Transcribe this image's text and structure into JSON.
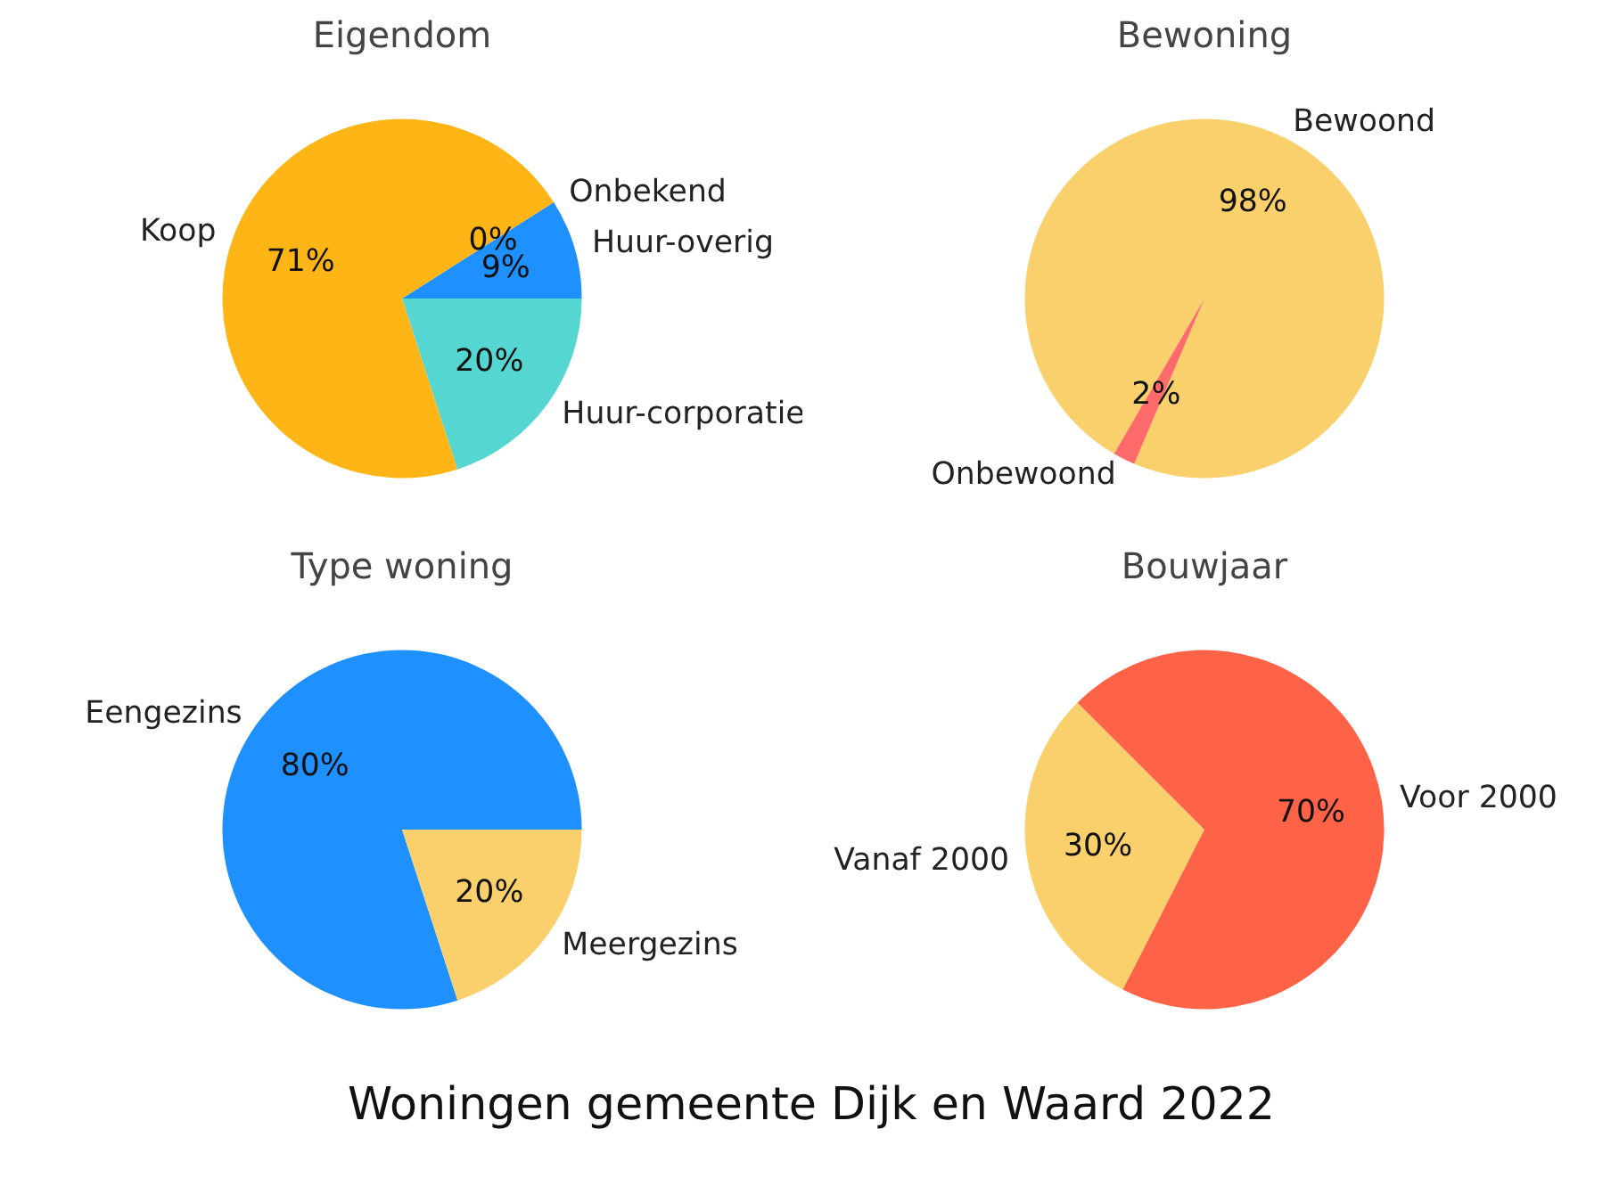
{
  "chart_data": [
    {
      "type": "pie",
      "title": "Eigendom",
      "categories": [
        "Huur-overig",
        "Onbekend",
        "Koop",
        "Huur-corporatie"
      ],
      "values": [
        9,
        0,
        71,
        20
      ],
      "value_labels": [
        "9%",
        "0%",
        "71%",
        "20%"
      ],
      "colors": [
        "#1e90ff",
        "#808080",
        "#ffb515",
        "#55d6d0"
      ]
    },
    {
      "type": "pie",
      "title": "Bewoning",
      "categories": [
        "Bewoond",
        "Onbewoond"
      ],
      "values": [
        98,
        2
      ],
      "value_labels": [
        "98%",
        "2%"
      ],
      "colors": [
        "#f9d06b",
        "#ff6b6b"
      ]
    },
    {
      "type": "pie",
      "title": "Type woning",
      "categories": [
        "Eengezins",
        "Meergezins"
      ],
      "values": [
        80,
        20
      ],
      "value_labels": [
        "80%",
        "20%"
      ],
      "colors": [
        "#1e90ff",
        "#f9d06b"
      ]
    },
    {
      "type": "pie",
      "title": "Bouwjaar",
      "categories": [
        "Vanaf 2000",
        "Voor 2000"
      ],
      "values": [
        30,
        70
      ],
      "value_labels": [
        "30%",
        "70%"
      ],
      "colors": [
        "#f9d06b",
        "#ff6347"
      ],
      "annotations": [
        "Woningen gemeente Dijk en Waard 2022"
      ]
    }
  ]
}
